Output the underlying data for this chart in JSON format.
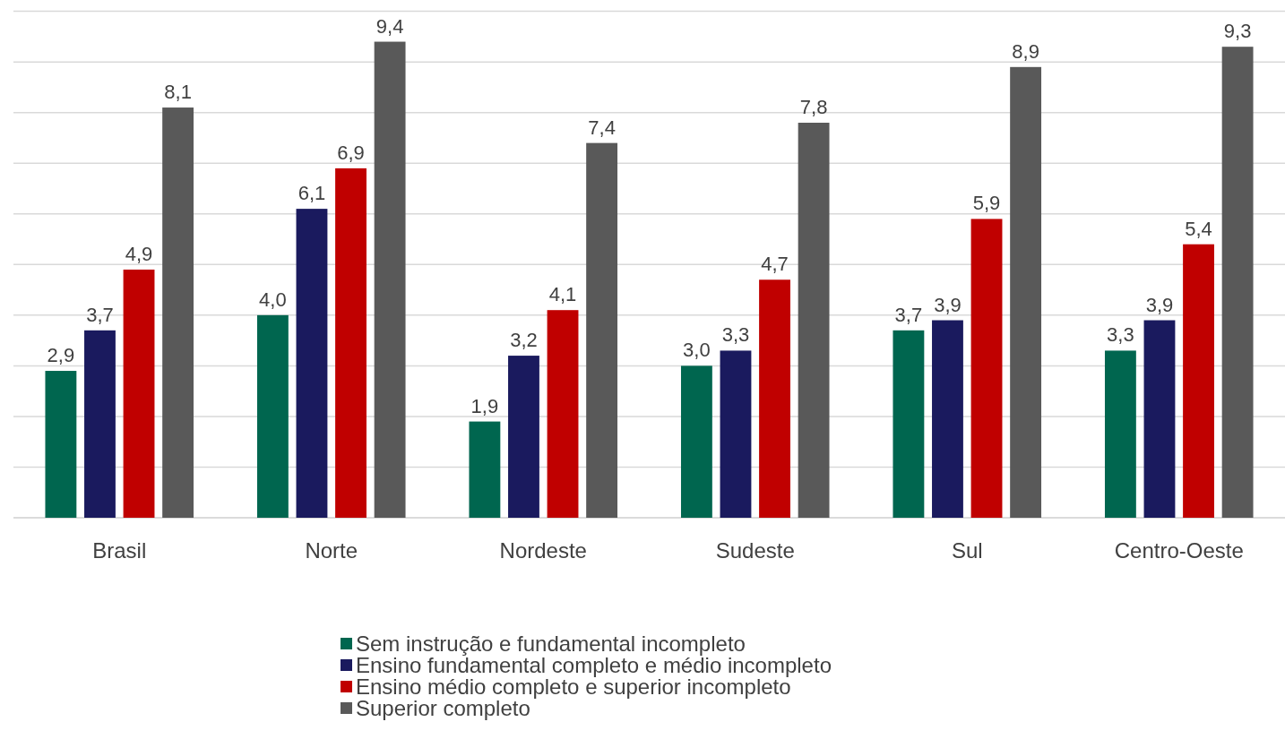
{
  "chart_data": {
    "type": "bar",
    "categories": [
      "Brasil",
      "Norte",
      "Nordeste",
      "Sudeste",
      "Sul",
      "Centro-Oeste"
    ],
    "series": [
      {
        "name": "Sem instrução e fundamental incompleto",
        "color": "#00664f",
        "values": [
          2.9,
          4.0,
          1.9,
          3.0,
          3.7,
          3.3
        ],
        "value_labels": [
          "2,9",
          "4,0",
          "1,9",
          "3,0",
          "3,7",
          "3,3"
        ]
      },
      {
        "name": "Ensino fundamental completo e médio incompleto",
        "color": "#1a1a5e",
        "values": [
          3.7,
          6.1,
          3.2,
          3.3,
          3.9,
          3.9
        ],
        "value_labels": [
          "3,7",
          "6,1",
          "3,2",
          "3,3",
          "3,9",
          "3,9"
        ]
      },
      {
        "name": "Ensino médio completo e superior incompleto",
        "color": "#c00000",
        "values": [
          4.9,
          6.9,
          4.1,
          4.7,
          5.9,
          5.4
        ],
        "value_labels": [
          "4,9",
          "6,9",
          "4,1",
          "4,7",
          "5,9",
          "5,4"
        ]
      },
      {
        "name": "Superior completo",
        "color": "#595959",
        "values": [
          8.1,
          9.4,
          7.4,
          7.8,
          8.9,
          9.3
        ],
        "value_labels": [
          "8,1",
          "9,4",
          "7,4",
          "7,8",
          "8,9",
          "9,3"
        ]
      }
    ],
    "tick_labels": "x",
    "grid": "y",
    "legend": "bottom"
  }
}
